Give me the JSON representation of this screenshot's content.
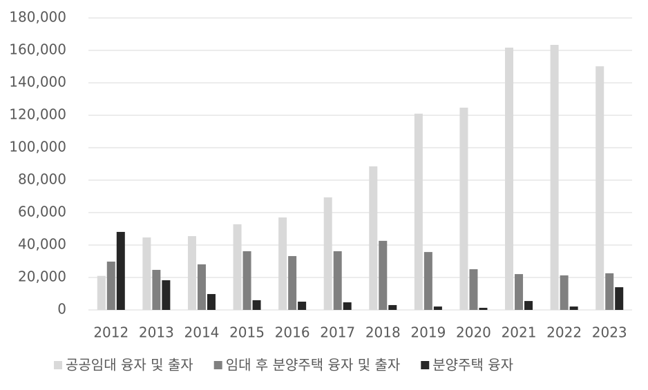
{
  "chart_data": {
    "type": "bar",
    "categories": [
      "2012",
      "2013",
      "2014",
      "2015",
      "2016",
      "2017",
      "2018",
      "2019",
      "2020",
      "2021",
      "2022",
      "2023"
    ],
    "series": [
      {
        "name": "공공임대 융자 및 출자",
        "color": "#d9d9d9",
        "values": [
          21000,
          44700,
          45500,
          52800,
          57000,
          69400,
          88500,
          121000,
          124700,
          161700,
          163400,
          150200
        ]
      },
      {
        "name": "임대 후 분양주택 융자 및 출자",
        "color": "#808080",
        "values": [
          29800,
          24700,
          28100,
          36200,
          33200,
          36200,
          42600,
          35700,
          25100,
          22100,
          21300,
          22600
        ]
      },
      {
        "name": "분양주택 융자",
        "color": "#262626",
        "values": [
          48100,
          18300,
          9800,
          6000,
          5100,
          4700,
          3000,
          2100,
          1300,
          5500,
          2100,
          14000
        ]
      }
    ],
    "ylim": [
      0,
      180000
    ],
    "yticks": [
      0,
      {
        "value": 20000,
        "label": "20,000"
      },
      {
        "value": 40000,
        "label": "40,000"
      },
      {
        "value": 60000,
        "label": "60,000"
      },
      {
        "value": 80000,
        "label": "80,000"
      },
      {
        "value": 100000,
        "label": "100,000"
      },
      {
        "value": 120000,
        "label": "120,000"
      },
      {
        "value": 140000,
        "label": "140,000"
      },
      {
        "value": 160000,
        "label": "160,000"
      },
      {
        "value": 180000,
        "label": "180,000"
      }
    ],
    "grid": true,
    "legend": "bottom"
  }
}
